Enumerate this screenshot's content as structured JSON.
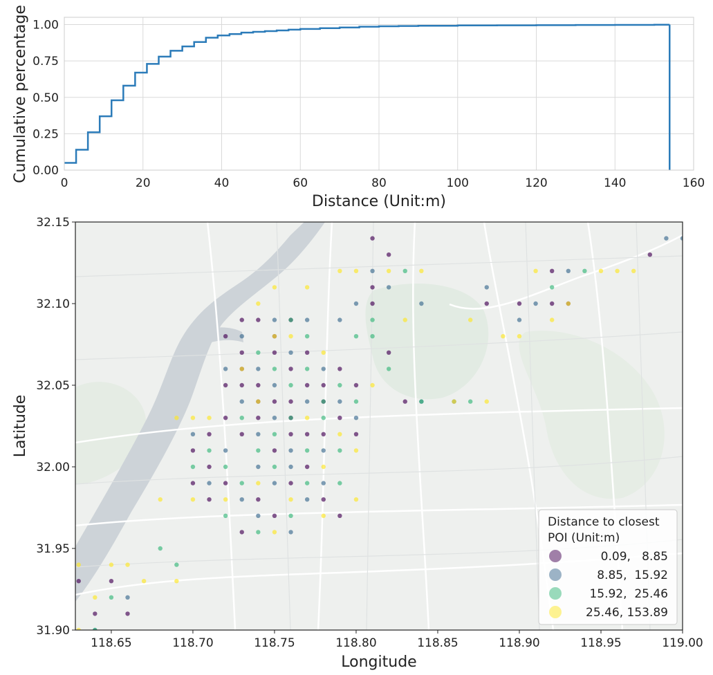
{
  "chart_data": [
    {
      "type": "line",
      "subtype": "cumulative-step",
      "title": "",
      "xlabel": "Distance (Unit:m)",
      "ylabel": "Cumulative percentage",
      "xlim": [
        0,
        160
      ],
      "ylim": [
        0,
        1.05
      ],
      "xticks": [
        0,
        20,
        40,
        60,
        80,
        100,
        120,
        140,
        160
      ],
      "xtick_labels": [
        "0",
        "20",
        "40",
        "60",
        "80",
        "100",
        "120",
        "140",
        "160"
      ],
      "yticks": [
        0,
        0.25,
        0.5,
        0.75,
        1.0
      ],
      "ytick_labels": [
        "0.00",
        "0.25",
        "0.50",
        "0.75",
        "1.00"
      ],
      "grid": true,
      "color": "#2b7bb9",
      "series": [
        {
          "x": [
            0,
            3,
            6,
            9,
            12,
            15,
            18,
            21,
            24,
            27,
            30,
            33,
            36,
            39,
            42,
            45,
            48,
            51,
            54,
            57,
            60,
            65,
            70,
            75,
            80,
            85,
            90,
            100,
            110,
            120,
            130,
            140,
            150,
            153.89
          ],
          "y": [
            0.05,
            0.14,
            0.26,
            0.37,
            0.48,
            0.58,
            0.67,
            0.73,
            0.78,
            0.82,
            0.85,
            0.88,
            0.91,
            0.925,
            0.935,
            0.945,
            0.95,
            0.955,
            0.96,
            0.965,
            0.97,
            0.975,
            0.98,
            0.985,
            0.988,
            0.99,
            0.992,
            0.994,
            0.995,
            0.996,
            0.997,
            0.998,
            0.999,
            1.0
          ]
        }
      ]
    },
    {
      "type": "scatter",
      "title": "",
      "xlabel": "Longitude",
      "ylabel": "Latitude",
      "xlim": [
        118.628,
        119.0
      ],
      "ylim": [
        31.9,
        32.15
      ],
      "xticks": [
        118.65,
        118.7,
        118.75,
        118.8,
        118.85,
        118.9,
        118.95,
        119.0
      ],
      "xtick_labels": [
        "118.65",
        "118.70",
        "118.75",
        "118.80",
        "118.85",
        "118.90",
        "118.95",
        "119.00"
      ],
      "yticks": [
        31.9,
        31.95,
        32.0,
        32.05,
        32.1,
        32.15
      ],
      "ytick_labels": [
        "31.90",
        "31.95",
        "32.00",
        "32.05",
        "32.10",
        "32.15"
      ],
      "grid": false,
      "basemap": "light street map",
      "legend": {
        "title": "Distance to closest\n POI (Unit:m)",
        "placement": "lower-right",
        "entries": [
          {
            "label": "0.09,   8.85",
            "color": "#440154"
          },
          {
            "label": "8.85,  15.92",
            "color": "#3b6a8f"
          },
          {
            "label": "15.92,  25.46",
            "color": "#35b779"
          },
          {
            "label": "25.46, 153.89",
            "color": "#fde725"
          }
        ]
      },
      "series": [
        {
          "name": "0.09,   8.85",
          "color": "#440154",
          "points": [
            [
              118.72,
              32.05
            ],
            [
              118.73,
              32.06
            ],
            [
              118.74,
              32.04
            ],
            [
              118.75,
              32.07
            ],
            [
              118.76,
              32.03
            ],
            [
              118.77,
              32.05
            ],
            [
              118.78,
              32.04
            ],
            [
              118.73,
              32.02
            ],
            [
              118.72,
              32.08
            ],
            [
              118.74,
              32.09
            ],
            [
              118.75,
              32.01
            ],
            [
              118.76,
              32.06
            ],
            [
              118.77,
              32.02
            ],
            [
              118.79,
              32.03
            ],
            [
              118.71,
              32.0
            ],
            [
              118.72,
              31.99
            ],
            [
              118.74,
              31.98
            ],
            [
              118.76,
              31.99
            ],
            [
              118.78,
              31.98
            ],
            [
              118.79,
              31.97
            ],
            [
              118.8,
              32.02
            ],
            [
              118.81,
              32.11
            ],
            [
              118.82,
              32.13
            ],
            [
              118.81,
              32.14
            ],
            [
              118.75,
              32.08
            ],
            [
              118.73,
              32.07
            ],
            [
              118.74,
              32.03
            ],
            [
              118.76,
              32.04
            ],
            [
              118.77,
              32.07
            ],
            [
              118.78,
              32.02
            ],
            [
              118.7,
              31.99
            ],
            [
              118.71,
              31.98
            ],
            [
              118.73,
              31.96
            ],
            [
              118.75,
              31.97
            ],
            [
              118.77,
              32.0
            ],
            [
              118.65,
              31.93
            ],
            [
              118.64,
              31.91
            ],
            [
              118.63,
              31.93
            ],
            [
              118.66,
              31.91
            ],
            [
              118.9,
              32.1
            ],
            [
              118.92,
              32.1
            ],
            [
              118.93,
              32.1
            ],
            [
              118.88,
              32.1
            ],
            [
              118.92,
              32.12
            ],
            [
              118.98,
              32.13
            ],
            [
              118.74,
              32.05
            ],
            [
              118.75,
              32.04
            ],
            [
              118.76,
              32.02
            ],
            [
              118.72,
              32.03
            ],
            [
              118.73,
              32.05
            ],
            [
              118.78,
              32.05
            ],
            [
              118.79,
              32.06
            ],
            [
              118.8,
              32.05
            ],
            [
              118.83,
              32.04
            ],
            [
              118.82,
              32.07
            ],
            [
              118.81,
              32.1
            ],
            [
              118.73,
              32.09
            ],
            [
              118.76,
              32.09
            ],
            [
              118.71,
              32.02
            ],
            [
              118.7,
              32.01
            ]
          ]
        },
        {
          "name": "8.85,  15.92",
          "color": "#3b6a8f",
          "points": [
            [
              118.73,
              32.04
            ],
            [
              118.74,
              32.06
            ],
            [
              118.75,
              32.05
            ],
            [
              118.76,
              32.07
            ],
            [
              118.77,
              32.04
            ],
            [
              118.78,
              32.06
            ],
            [
              118.72,
              32.06
            ],
            [
              118.74,
              32.02
            ],
            [
              118.75,
              32.03
            ],
            [
              118.76,
              32.01
            ],
            [
              118.79,
              32.04
            ],
            [
              118.8,
              32.03
            ],
            [
              118.71,
              31.99
            ],
            [
              118.73,
              31.98
            ],
            [
              118.75,
              31.99
            ],
            [
              118.77,
              31.98
            ],
            [
              118.74,
              31.97
            ],
            [
              118.76,
              31.96
            ],
            [
              118.81,
              32.12
            ],
            [
              118.8,
              32.1
            ],
            [
              118.79,
              32.09
            ],
            [
              118.82,
              32.11
            ],
            [
              118.84,
              32.1
            ],
            [
              118.93,
              32.12
            ],
            [
              118.91,
              32.1
            ],
            [
              118.9,
              32.09
            ],
            [
              118.88,
              32.11
            ],
            [
              119.0,
              32.14
            ],
            [
              118.99,
              32.14
            ],
            [
              118.73,
              32.08
            ],
            [
              118.75,
              32.09
            ],
            [
              118.77,
              32.09
            ],
            [
              118.72,
              32.01
            ],
            [
              118.7,
              32.02
            ],
            [
              118.78,
              32.01
            ],
            [
              118.66,
              31.92
            ],
            [
              118.64,
              31.9
            ],
            [
              118.86,
              32.04
            ],
            [
              118.84,
              32.04
            ],
            [
              118.74,
              32.0
            ],
            [
              118.76,
              32.0
            ],
            [
              118.78,
              31.99
            ]
          ]
        },
        {
          "name": "15.92,  25.46",
          "color": "#35b779",
          "points": [
            [
              118.74,
              32.07
            ],
            [
              118.75,
              32.06
            ],
            [
              118.76,
              32.05
            ],
            [
              118.77,
              32.06
            ],
            [
              118.78,
              32.03
            ],
            [
              118.79,
              32.05
            ],
            [
              118.73,
              32.03
            ],
            [
              118.74,
              32.01
            ],
            [
              118.76,
              32.03
            ],
            [
              118.77,
              32.01
            ],
            [
              118.78,
              32.04
            ],
            [
              118.8,
              32.04
            ],
            [
              118.72,
              32.0
            ],
            [
              118.73,
              31.99
            ],
            [
              118.75,
              32.0
            ],
            [
              118.77,
              31.99
            ],
            [
              118.79,
              31.99
            ],
            [
              118.74,
              31.96
            ],
            [
              118.76,
              31.97
            ],
            [
              118.81,
              32.08
            ],
            [
              118.82,
              32.06
            ],
            [
              118.8,
              32.08
            ],
            [
              118.77,
              32.08
            ],
            [
              118.76,
              32.09
            ],
            [
              118.71,
              32.01
            ],
            [
              118.7,
              32.0
            ],
            [
              118.69,
              31.94
            ],
            [
              118.68,
              31.95
            ],
            [
              118.64,
              31.9
            ],
            [
              118.65,
              31.92
            ],
            [
              118.87,
              32.04
            ],
            [
              118.92,
              32.11
            ],
            [
              118.94,
              32.12
            ],
            [
              118.81,
              32.09
            ],
            [
              118.83,
              32.12
            ],
            [
              118.84,
              32.04
            ],
            [
              118.75,
              32.02
            ],
            [
              118.79,
              32.01
            ],
            [
              118.72,
              31.97
            ]
          ]
        },
        {
          "name": "25.46, 153.89",
          "color": "#fde725",
          "points": [
            [
              118.73,
              32.06
            ],
            [
              118.75,
              32.08
            ],
            [
              118.76,
              32.08
            ],
            [
              118.78,
              32.07
            ],
            [
              118.74,
              32.04
            ],
            [
              118.77,
              32.03
            ],
            [
              118.78,
              32.0
            ],
            [
              118.79,
              32.02
            ],
            [
              118.8,
              32.01
            ],
            [
              118.71,
              32.03
            ],
            [
              118.7,
              31.98
            ],
            [
              118.72,
              31.98
            ],
            [
              118.74,
              31.99
            ],
            [
              118.76,
              31.98
            ],
            [
              118.78,
              31.97
            ],
            [
              118.8,
              31.98
            ],
            [
              118.75,
              31.96
            ],
            [
              118.68,
              31.98
            ],
            [
              118.69,
              32.03
            ],
            [
              118.7,
              32.03
            ],
            [
              118.65,
              31.94
            ],
            [
              118.63,
              31.94
            ],
            [
              118.64,
              31.92
            ],
            [
              118.66,
              31.94
            ],
            [
              118.63,
              31.9
            ],
            [
              118.67,
              31.93
            ],
            [
              118.69,
              31.93
            ],
            [
              118.84,
              32.12
            ],
            [
              118.83,
              32.09
            ],
            [
              118.86,
              32.04
            ],
            [
              118.88,
              32.04
            ],
            [
              118.9,
              32.08
            ],
            [
              118.89,
              32.08
            ],
            [
              118.87,
              32.09
            ],
            [
              118.91,
              32.12
            ],
            [
              118.93,
              32.1
            ],
            [
              118.96,
              32.12
            ],
            [
              118.97,
              32.12
            ],
            [
              118.95,
              32.12
            ],
            [
              118.92,
              32.09
            ],
            [
              118.79,
              32.12
            ],
            [
              118.82,
              32.12
            ],
            [
              118.8,
              32.12
            ],
            [
              118.77,
              32.11
            ],
            [
              118.75,
              32.11
            ],
            [
              118.74,
              32.1
            ],
            [
              118.81,
              32.05
            ]
          ]
        }
      ]
    }
  ]
}
